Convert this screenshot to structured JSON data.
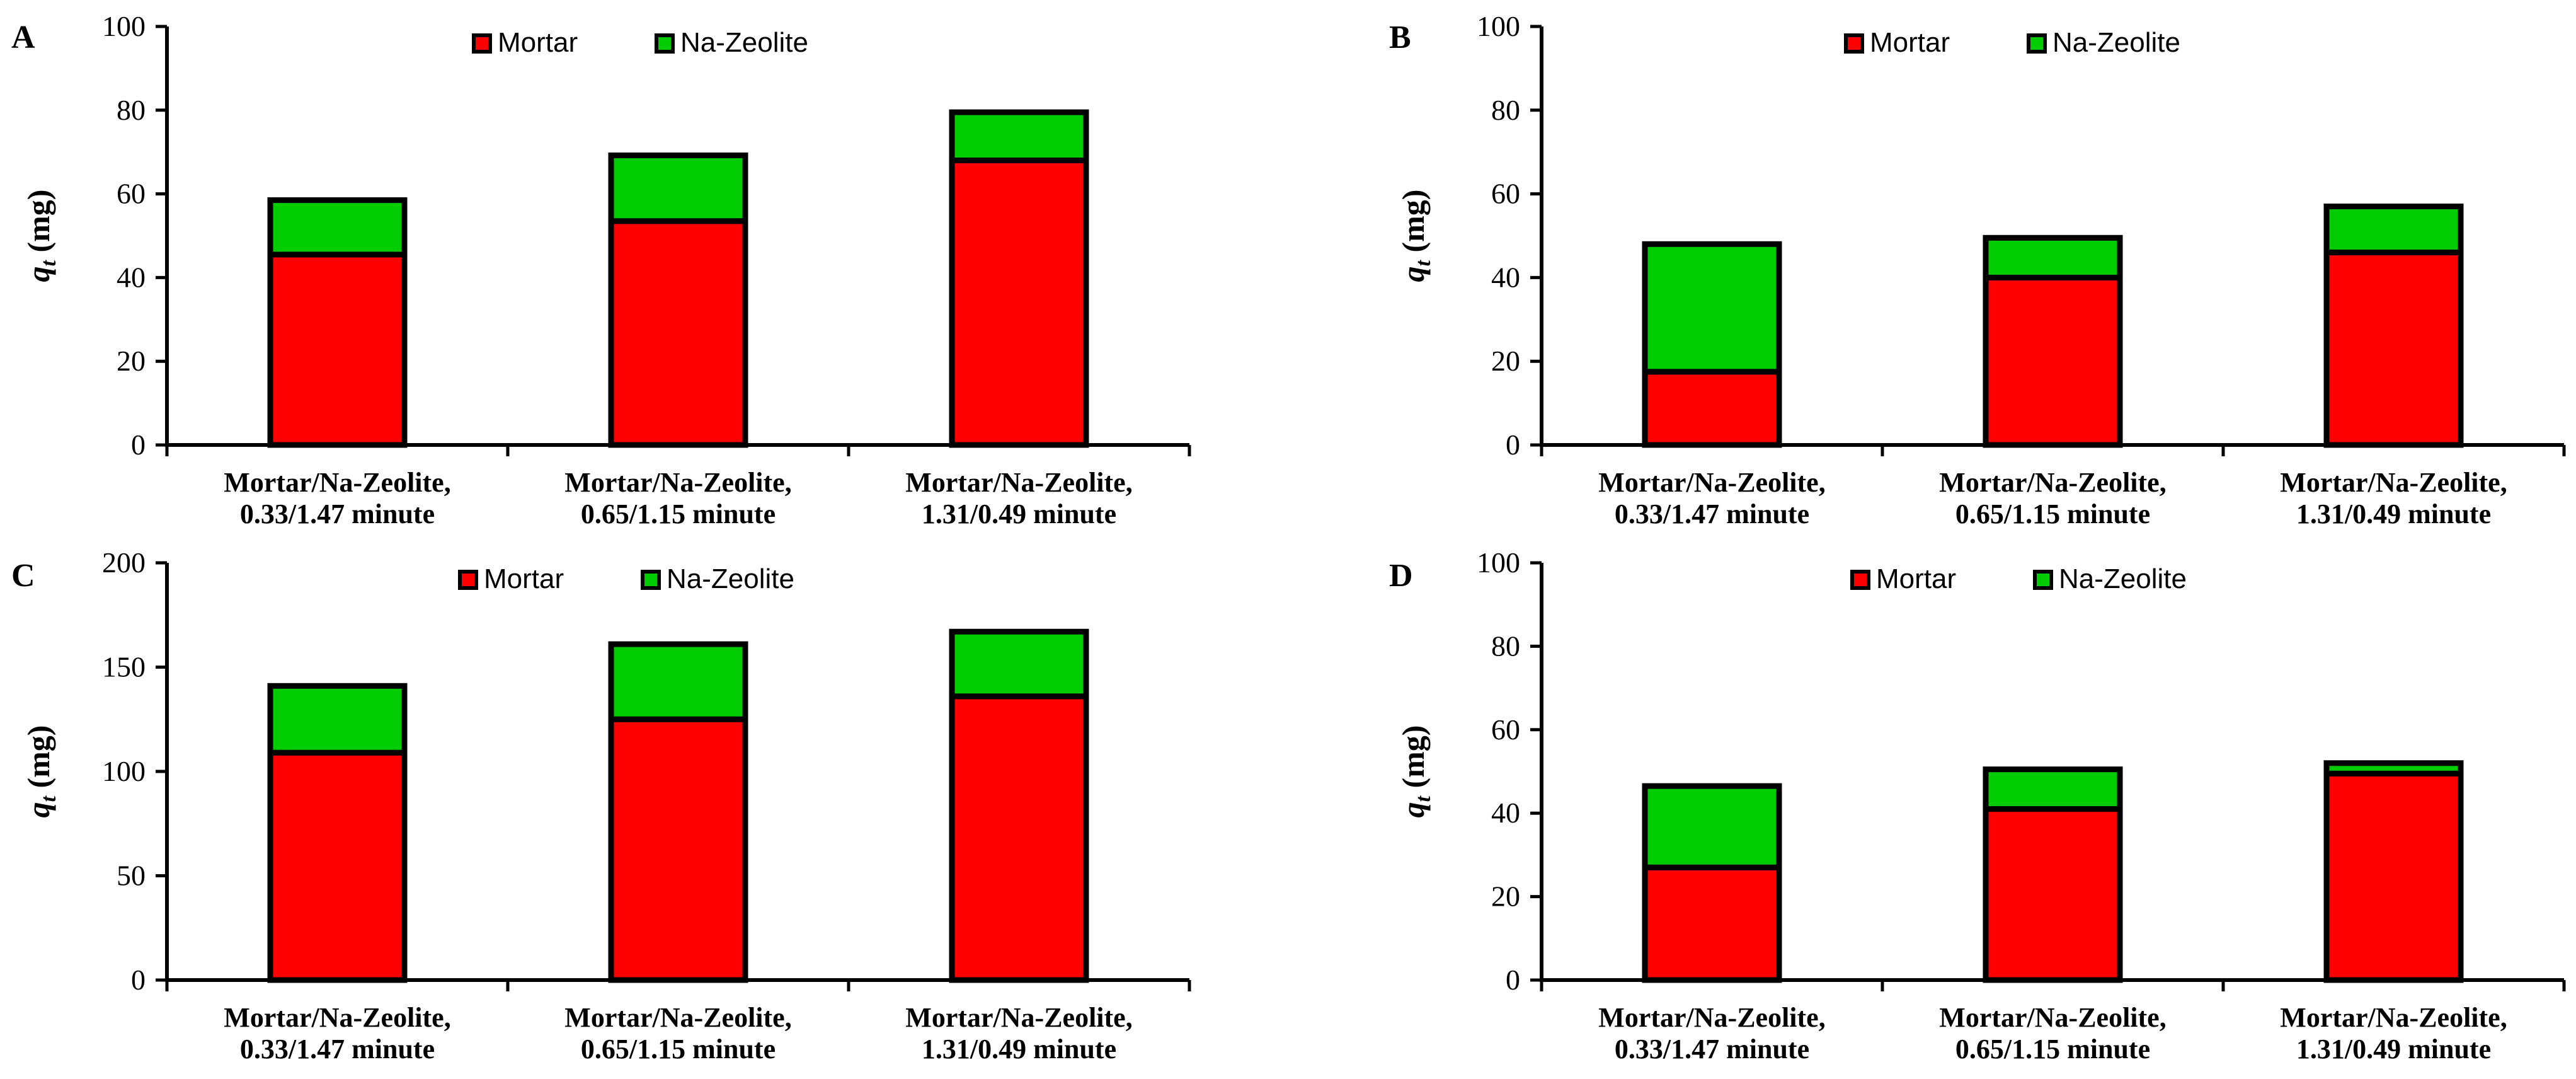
{
  "colors": {
    "mortar": "#ff0000",
    "zeolite": "#00cc00",
    "axis": "#000000"
  },
  "chart_data": [
    {
      "type": "bar",
      "stacked": true,
      "panel": "A",
      "ylabel_var": "q",
      "ylabel_sub": "t",
      "ylabel_unit": " (mg)",
      "categories": [
        [
          "Mortar/Na-Zeolite,",
          "0.33/1.47 minute"
        ],
        [
          "Mortar/Na-Zeolite,",
          "0.65/1.15 minute"
        ],
        [
          "Mortar/Na-Zeolite,",
          "1.31/0.49 minute"
        ]
      ],
      "series": [
        {
          "name": "Mortar",
          "values": [
            45.5,
            53.5,
            68
          ]
        },
        {
          "name": "Na-Zeolite",
          "values": [
            13,
            15.7,
            11.5
          ]
        }
      ],
      "ylim": [
        0,
        100
      ],
      "yticks": [
        0,
        20,
        40,
        60,
        80,
        100
      ],
      "legend": "top-center"
    },
    {
      "type": "bar",
      "stacked": true,
      "panel": "B",
      "ylabel_var": "q",
      "ylabel_sub": "t",
      "ylabel_unit": " (mg)",
      "categories": [
        [
          "Mortar/Na-Zeolite,",
          "0.33/1.47 minute"
        ],
        [
          "Mortar/Na-Zeolite,",
          "0.65/1.15 minute"
        ],
        [
          "Mortar/Na-Zeolite,",
          "1.31/0.49 minute"
        ]
      ],
      "series": [
        {
          "name": "Mortar",
          "values": [
            17.5,
            40,
            46
          ]
        },
        {
          "name": "Na-Zeolite",
          "values": [
            30.5,
            9.5,
            11
          ]
        }
      ],
      "ylim": [
        0,
        100
      ],
      "yticks": [
        0,
        20,
        40,
        60,
        80,
        100
      ],
      "legend": "top-center"
    },
    {
      "type": "bar",
      "stacked": true,
      "panel": "C",
      "ylabel_var": "q",
      "ylabel_sub": "t",
      "ylabel_unit": " (mg)",
      "categories": [
        [
          "Mortar/Na-Zeolite,",
          "0.33/1.47 minute"
        ],
        [
          "Mortar/Na-Zeolite,",
          "0.65/1.15 minute"
        ],
        [
          "Mortar/Na-Zeolite,",
          "1.31/0.49 minute"
        ]
      ],
      "series": [
        {
          "name": "Mortar",
          "values": [
            109,
            125,
            136
          ]
        },
        {
          "name": "Na-Zeolite",
          "values": [
            32,
            36,
            31
          ]
        }
      ],
      "ylim": [
        0,
        200
      ],
      "yticks": [
        0,
        50,
        100,
        150,
        200
      ],
      "legend": "top-center"
    },
    {
      "type": "bar",
      "stacked": true,
      "panel": "D",
      "ylabel_var": "q",
      "ylabel_sub": "t",
      "ylabel_unit": " (mg)",
      "categories": [
        [
          "Mortar/Na-Zeolite,",
          "0.33/1.47 minute"
        ],
        [
          "Mortar/Na-Zeolite,",
          "0.65/1.15 minute"
        ],
        [
          "Mortar/Na-Zeolite,",
          "1.31/0.49 minute"
        ]
      ],
      "series": [
        {
          "name": "Mortar",
          "values": [
            27,
            41,
            49.5
          ]
        },
        {
          "name": "Na-Zeolite",
          "values": [
            19.5,
            9.5,
            2.5
          ]
        }
      ],
      "ylim": [
        0,
        100
      ],
      "yticks": [
        0,
        20,
        40,
        60,
        80,
        100
      ],
      "legend": "top-center"
    }
  ]
}
